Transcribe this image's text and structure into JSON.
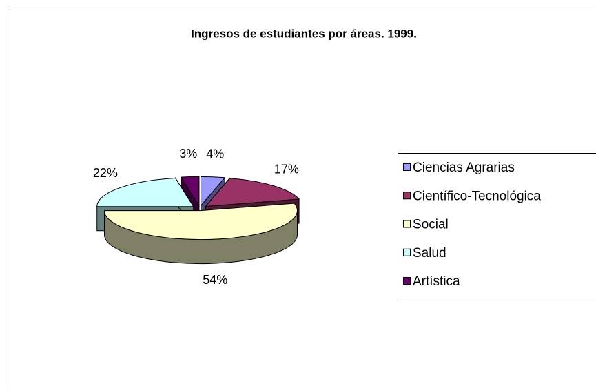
{
  "chart_data": {
    "type": "pie",
    "title": "Ingresos de estudiantes por áreas. 1999.",
    "categories": [
      "Ciencias Agrarias",
      "Científico-Tecnológica",
      "Social",
      "Salud",
      "Artística"
    ],
    "values": [
      4,
      17,
      54,
      22,
      3
    ],
    "value_labels": [
      "4%",
      "17%",
      "54%",
      "22%",
      "3%"
    ],
    "colors": [
      "#9999ff",
      "#993366",
      "#ffffcc",
      "#ccffff",
      "#660066"
    ],
    "legend": "right"
  }
}
